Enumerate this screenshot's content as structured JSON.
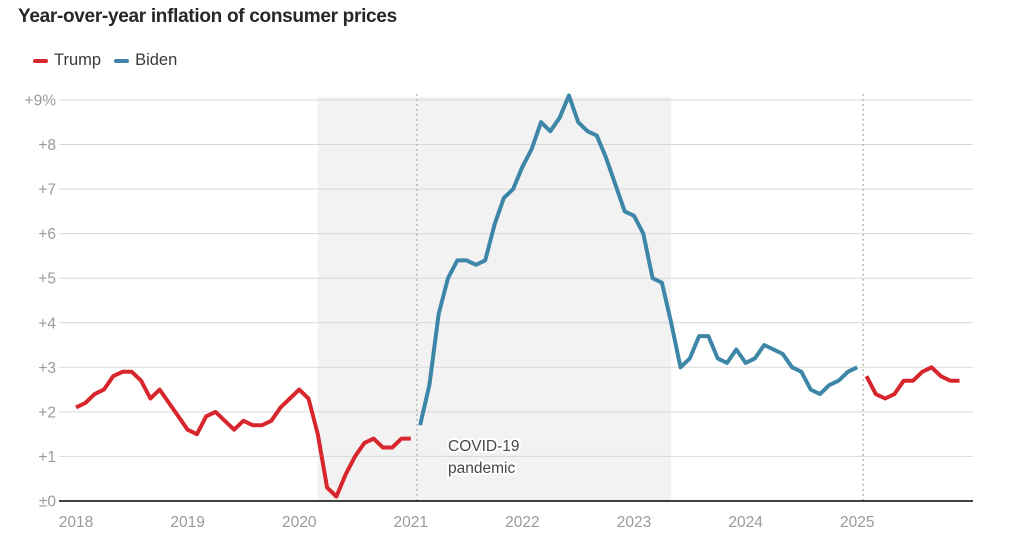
{
  "header": {
    "title": "Year-over-year inflation of consumer prices"
  },
  "legend": {
    "items": [
      {
        "label": "Trump",
        "color": "#d8262d"
      },
      {
        "label": "Biden",
        "color": "#3d86a8"
      }
    ]
  },
  "colors": {
    "trump_red": "#d8262d",
    "biden_blue": "#3d86a8",
    "gridline": "#d8d8d8",
    "baseline": "#262626",
    "tick_text": "#9a9a9a",
    "pandemic_shade": "#f2f2f2",
    "term_divider": "#b3b3b3",
    "annotation_text": "#474747",
    "title_text": "#26262b",
    "legend_text": "#3a3a3a",
    "background": "#ffffff"
  },
  "chart_data": {
    "type": "line",
    "title": "Year-over-year inflation of consumer prices",
    "x_unit": "month",
    "x_start": "2018-01",
    "x_end": "2025-12",
    "ylim": [
      0,
      9.3
    ],
    "grid": true,
    "legend_position": "top-left",
    "y_ticks": [
      {
        "value": 9,
        "label": "+9%"
      },
      {
        "value": 8,
        "label": "+8"
      },
      {
        "value": 7,
        "label": "+7"
      },
      {
        "value": 6,
        "label": "+6"
      },
      {
        "value": 5,
        "label": "+5"
      },
      {
        "value": 4,
        "label": "+4"
      },
      {
        "value": 3,
        "label": "+3"
      },
      {
        "value": 2,
        "label": "+2"
      },
      {
        "value": 1,
        "label": "+1"
      },
      {
        "value": 0,
        "label": "±0"
      }
    ],
    "x_ticks": [
      {
        "label": "2018",
        "month": 0
      },
      {
        "label": "2019",
        "month": 12
      },
      {
        "label": "2020",
        "month": 24
      },
      {
        "label": "2021",
        "month": 36
      },
      {
        "label": "2022",
        "month": 48
      },
      {
        "label": "2023",
        "month": 60
      },
      {
        "label": "2024",
        "month": 72
      },
      {
        "label": "2025",
        "month": 84
      }
    ],
    "series": [
      {
        "name": "Trump",
        "color": "#d8262d",
        "start": "2018-01",
        "start_month": 0,
        "values": [
          2.1,
          2.2,
          2.4,
          2.5,
          2.8,
          2.9,
          2.9,
          2.7,
          2.3,
          2.5,
          2.2,
          1.9,
          1.6,
          1.5,
          1.9,
          2.0,
          1.8,
          1.6,
          1.8,
          1.7,
          1.7,
          1.8,
          2.1,
          2.3,
          2.5,
          2.3,
          1.5,
          0.3,
          0.1,
          0.6,
          1.0,
          1.3,
          1.4,
          1.2,
          1.2,
          1.4,
          1.4
        ]
      },
      {
        "name": "Biden",
        "color": "#3d86a8",
        "start": "2021-02",
        "start_month": 37,
        "values": [
          1.7,
          2.6,
          4.2,
          5.0,
          5.4,
          5.4,
          5.3,
          5.4,
          6.2,
          6.8,
          7.0,
          7.5,
          7.9,
          8.5,
          8.3,
          8.6,
          9.1,
          8.5,
          8.3,
          8.2,
          7.7,
          7.1,
          6.5,
          6.4,
          6.0,
          5.0,
          4.9,
          4.0,
          3.0,
          3.2,
          3.7,
          3.7,
          3.2,
          3.1,
          3.4,
          3.1,
          3.2,
          3.5,
          3.4,
          3.3,
          3.0,
          2.9,
          2.5,
          2.4,
          2.6,
          2.7,
          2.9,
          3.0
        ]
      },
      {
        "name": "Trump",
        "color": "#d8262d",
        "start": "2025-02",
        "start_month": 85,
        "values": [
          2.8,
          2.4,
          2.3,
          2.4,
          2.7,
          2.7,
          2.9,
          3.0,
          2.8,
          2.7,
          2.7
        ]
      }
    ],
    "shaded_region": {
      "label_lines": [
        "COVID-19",
        "pandemic"
      ],
      "start": "2020-03",
      "end": "2023-05",
      "start_month": 26,
      "end_month": 64
    },
    "term_dividers": [
      {
        "date": "2021-01",
        "month": 36.65
      },
      {
        "date": "2025-01",
        "month": 84.65
      }
    ]
  }
}
